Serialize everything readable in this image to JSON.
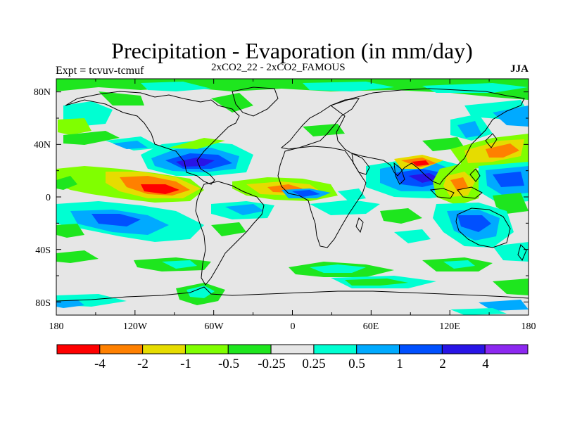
{
  "header": {
    "title": "Precipitation - Evaporation (in mm/day)",
    "expt": "Expt = tcvuv-tcmuf",
    "comparison": "2xCO2_22 - 2xCO2_FAMOUS",
    "season": "JJA"
  },
  "axes": {
    "y_ticks": [
      "80N",
      "40N",
      "0",
      "40S",
      "80S"
    ],
    "x_ticks": [
      "180",
      "120W",
      "60W",
      "0",
      "60E",
      "120E",
      "180"
    ]
  },
  "colorbar": {
    "colors": [
      "#ff0000",
      "#ff8000",
      "#e6dc00",
      "#80ff00",
      "#1ee61e",
      "#e6e6e6",
      "#00ffd2",
      "#00aaff",
      "#0050ff",
      "#2814e6",
      "#8c28f0"
    ],
    "labels": [
      "-4",
      "-2",
      "-1",
      "-0.5",
      "-0.25",
      "0.25",
      "0.5",
      "1",
      "2",
      "4"
    ]
  },
  "colors": {
    "neutral_fill": "#e6e6e6",
    "coastline": "#000000"
  }
}
